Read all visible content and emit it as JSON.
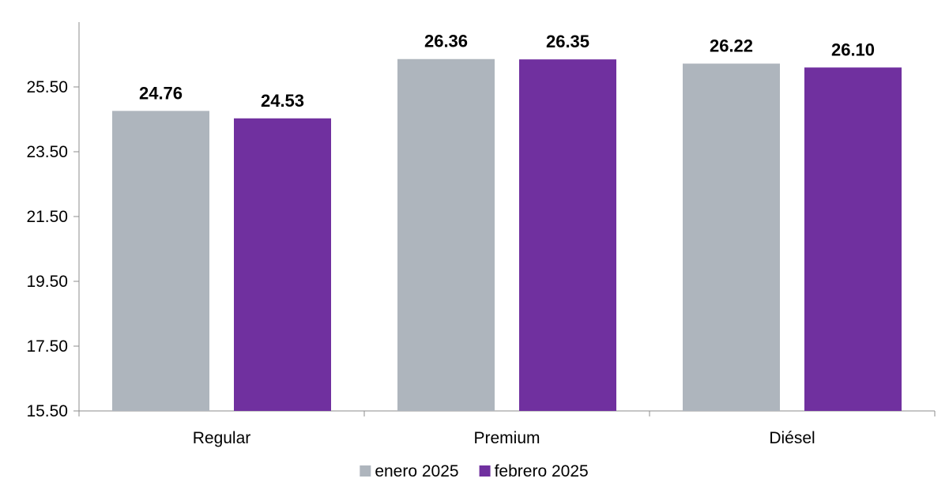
{
  "chart_data": {
    "type": "bar",
    "categories": [
      "Regular",
      "Premium",
      "Diésel"
    ],
    "series": [
      {
        "name": "enero 2025",
        "color": "#aeb5bd",
        "values": [
          24.76,
          26.36,
          26.22
        ],
        "labels": [
          "24.76",
          "26.36",
          "26.22"
        ]
      },
      {
        "name": "febrero 2025",
        "color": "#70309f",
        "values": [
          24.53,
          26.35,
          26.1
        ],
        "labels": [
          "24.53",
          "26.35",
          "26.10"
        ]
      }
    ],
    "yticks": [
      "15.50",
      "17.50",
      "19.50",
      "21.50",
      "23.50",
      "25.50"
    ],
    "ylim": [
      15.5,
      27.5
    ],
    "title": "",
    "xlabel": "",
    "ylabel": "",
    "grid": false,
    "legend": "bottom"
  }
}
